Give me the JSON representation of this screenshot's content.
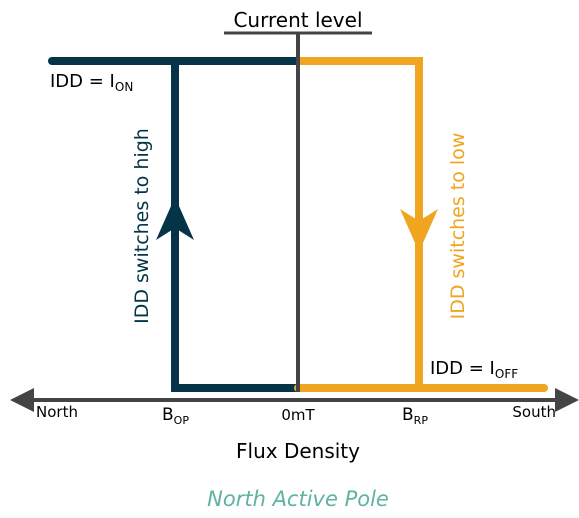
{
  "diagram": {
    "title": "Current level",
    "label_on": {
      "main": "IDD = I",
      "sub": "ON"
    },
    "label_off": {
      "main": "IDD = I",
      "sub": "OFF"
    },
    "label_high": "IDD switches to high",
    "label_low": "IDD switches to low",
    "axis": {
      "left": "North",
      "right": "South",
      "center": "0mT",
      "bop": {
        "main": "B",
        "sub": "OP"
      },
      "brp": {
        "main": "B",
        "sub": "RP"
      },
      "title": "Flux Density"
    },
    "caption": "North Active Pole",
    "colors": {
      "navy": "#053447",
      "orange": "#f0a521",
      "axis": "#444444",
      "caption": "#5fb3a0"
    }
  }
}
